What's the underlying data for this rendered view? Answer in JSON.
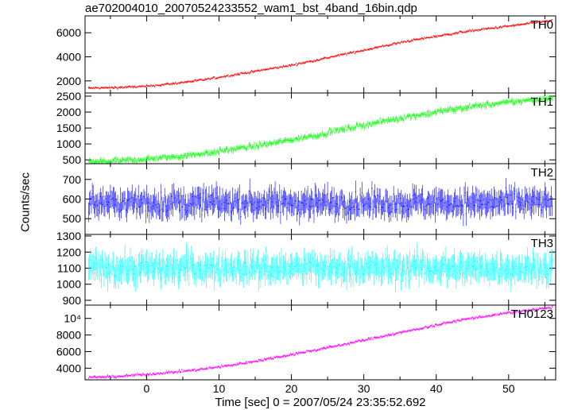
{
  "chart_data": {
    "type": "line",
    "title": "ae702004010_20070524233552_wam1_bst_4band_16bin.qdp",
    "xlabel": "Time [sec] 0 = 2007/05/24 23:35:52.692",
    "ylabel": "Counts/sec",
    "xlim": [
      -8.5,
      56.5
    ],
    "xticks": [
      0,
      10,
      20,
      30,
      40,
      50
    ],
    "grid": false,
    "panels": [
      {
        "name": "TH0",
        "color": "#ff0000",
        "ylim": [
          1000,
          7400
        ],
        "yticks": [
          2000,
          4000,
          6000
        ],
        "ytick_labels": [
          "2000",
          "4000",
          "6000"
        ],
        "series": {
          "x": [
            -8,
            -4,
            0,
            4,
            8,
            12,
            16,
            20,
            24,
            28,
            32,
            36,
            40,
            44,
            48,
            52,
            56
          ],
          "y": [
            1400,
            1450,
            1550,
            1800,
            2100,
            2500,
            2900,
            3300,
            3800,
            4300,
            4800,
            5300,
            5700,
            6100,
            6400,
            6700,
            7000
          ]
        },
        "noise": 80
      },
      {
        "name": "TH1",
        "color": "#00ff00",
        "ylim": [
          380,
          2600
        ],
        "yticks": [
          500,
          1000,
          1500,
          2000,
          2500
        ],
        "ytick_labels": [
          "500",
          "1000",
          "1500",
          "2000",
          "2500"
        ],
        "series": {
          "x": [
            -8,
            -4,
            0,
            4,
            8,
            12,
            16,
            20,
            24,
            28,
            32,
            36,
            40,
            44,
            48,
            52,
            56
          ],
          "y": [
            430,
            460,
            520,
            600,
            700,
            830,
            970,
            1130,
            1300,
            1500,
            1680,
            1850,
            2000,
            2150,
            2250,
            2350,
            2450
          ]
        },
        "noise": 70
      },
      {
        "name": "TH2",
        "color": "#0000ff",
        "ylim": [
          420,
          780
        ],
        "yticks": [
          500,
          600,
          700
        ],
        "ytick_labels": [
          "500",
          "600",
          "700"
        ],
        "series": {
          "x": [
            -8,
            56
          ],
          "y": [
            580,
            580
          ]
        },
        "noise": 50
      },
      {
        "name": "TH3",
        "color": "#00ffff",
        "ylim": [
          870,
          1310
        ],
        "yticks": [
          900,
          1000,
          1100,
          1200,
          1300
        ],
        "ytick_labels": [
          "900",
          "1000",
          "1100",
          "1200",
          "1300"
        ],
        "series": {
          "x": [
            -8,
            56
          ],
          "y": [
            1100,
            1100
          ]
        },
        "noise": 65
      },
      {
        "name": "TH0123",
        "color": "#ff00ff",
        "ylim": [
          2600,
          11600
        ],
        "yticks": [
          4000,
          6000,
          8000,
          10000
        ],
        "ytick_labels": [
          "4000",
          "6000",
          "8000",
          "10⁴"
        ],
        "series": {
          "x": [
            -8,
            -4,
            0,
            4,
            8,
            12,
            16,
            20,
            24,
            28,
            32,
            36,
            40,
            44,
            48,
            52,
            56
          ],
          "y": [
            2900,
            3000,
            3250,
            3550,
            3900,
            4400,
            5000,
            5650,
            6300,
            7000,
            7750,
            8450,
            9200,
            9900,
            10400,
            10900,
            11300
          ]
        },
        "noise": 130
      }
    ]
  }
}
